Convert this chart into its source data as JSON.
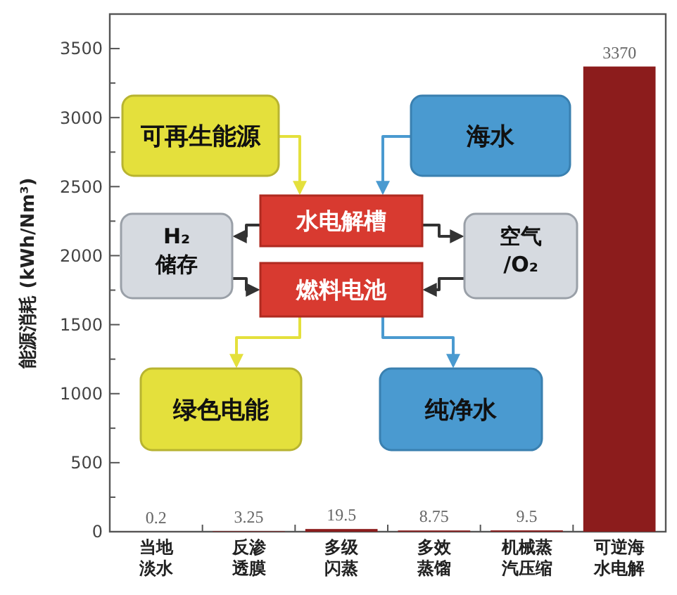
{
  "chart_data": {
    "type": "bar",
    "ylabel": "能源消耗 (kWh/Nm³)",
    "categories": [
      "当地淡水",
      "反渗透膜",
      "多级闪蒸",
      "多效蒸馏",
      "机械蒸汽压缩",
      "可逆海水电解"
    ],
    "values": [
      0.2,
      3.25,
      19.5,
      8.75,
      9.5,
      3370
    ],
    "color": "#8c1c1c",
    "data_labels": true,
    "ylim": [
      0,
      3750
    ],
    "yticks": [
      0,
      {
        "value": 250,
        "label": null
      },
      500,
      {
        "value": 750,
        "label": null
      },
      1000,
      {
        "value": 1250,
        "label": null
      },
      1500,
      {
        "value": 1750,
        "label": null
      },
      2000,
      {
        "value": 2250,
        "label": null
      },
      2500,
      {
        "value": 2750,
        "label": null
      },
      3000,
      {
        "value": 3250,
        "label": null
      },
      3500
    ],
    "grid": false,
    "annotations": [
      "可再生能源",
      "海水",
      "水电解槽",
      "燃料电池",
      "H₂储存",
      "空气/O₂",
      "绿色电能",
      "纯净水"
    ]
  }
}
